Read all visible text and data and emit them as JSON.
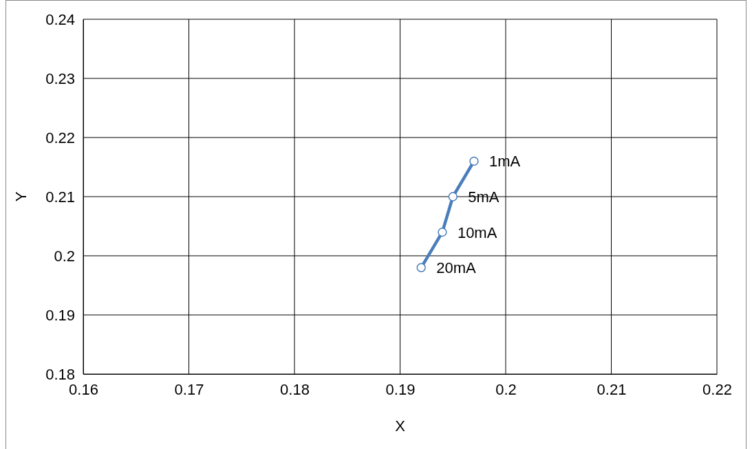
{
  "chart_data": {
    "type": "line",
    "xlabel": "X",
    "ylabel": "Y",
    "x": [
      0.197,
      0.195,
      0.194,
      0.192
    ],
    "series": [
      {
        "color": "#4a7ebb",
        "values": [
          0.216,
          0.21,
          0.204,
          0.198
        ]
      }
    ],
    "xlim": [
      0.16,
      0.22
    ],
    "xticks": [
      0.16,
      0.17,
      0.18,
      0.19,
      0.2,
      0.21,
      0.22
    ],
    "ylim": [
      0.18,
      0.24
    ],
    "yticks": [
      0.18,
      0.19,
      0.2,
      0.21,
      0.22,
      0.23,
      0.24
    ],
    "grid": true,
    "marker": "circle",
    "line_style": "solid",
    "annotations": [
      {
        "text": "1mA",
        "x": 0.197,
        "y": 0.216
      },
      {
        "text": "5mA",
        "x": 0.195,
        "y": 0.21
      },
      {
        "text": "10mA",
        "x": 0.194,
        "y": 0.204
      },
      {
        "text": "20mA",
        "x": 0.192,
        "y": 0.198
      }
    ]
  }
}
